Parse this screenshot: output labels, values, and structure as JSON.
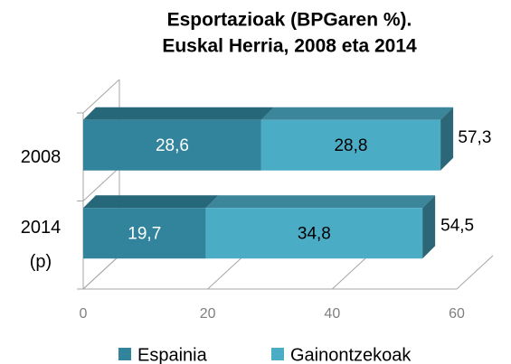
{
  "chart_data": {
    "type": "bar3d_stacked_horizontal",
    "title": "Esportazioak (BPGaren %).",
    "subtitle": "Euskal Herria, 2008 eta 2014",
    "categories": [
      "2008",
      "2014\n(p)"
    ],
    "series": [
      {
        "name": "Espainia",
        "color": "#31849b",
        "values": [
          28.6,
          19.7
        ],
        "value_labels": [
          "28,6",
          "19,7"
        ]
      },
      {
        "name": "Gainontzekoak",
        "color": "#4bacc6",
        "values": [
          28.8,
          34.8
        ],
        "value_labels": [
          "28,8",
          "34,8"
        ]
      }
    ],
    "totals": [
      57.3,
      54.5
    ],
    "total_labels": [
      "57,3",
      "54,5"
    ],
    "xlim": [
      0,
      60
    ],
    "xticks": [
      0,
      20,
      40,
      60
    ],
    "legend": "bottom"
  }
}
